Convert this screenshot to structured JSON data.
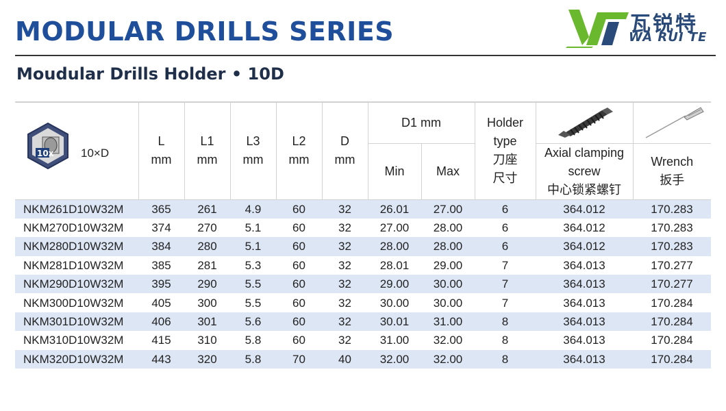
{
  "header": {
    "title": "MODULAR DRILLS SERIES",
    "subtitle": "Moudular Drills Holder • 10D",
    "logo": {
      "chinese": "瓦锐特",
      "english": "WA RUI TE",
      "brand_green": "#6ab82e",
      "brand_blue": "#2a4a7a"
    }
  },
  "table": {
    "icon": {
      "badge_text": "10x",
      "label": "10×D",
      "name": "hex-drill-icon"
    },
    "columns": {
      "L": {
        "line1": "L",
        "line2": "mm"
      },
      "L1": {
        "line1": "L1",
        "line2": "mm"
      },
      "L3": {
        "line1": "L3",
        "line2": "mm"
      },
      "L2": {
        "line1": "L2",
        "line2": "mm"
      },
      "D": {
        "line1": "D",
        "line2": "mm"
      },
      "D1": {
        "label": "D1 mm",
        "min": "Min",
        "max": "Max"
      },
      "holder": {
        "line1": "Holder",
        "line2": "type",
        "line3": "刀座",
        "line4": "尺寸"
      },
      "screw": {
        "line1": "Axial clamping",
        "line2": "screw",
        "line3": "中心锁紧螺钉"
      },
      "wrench": {
        "line1": "Wrench",
        "line2": "扳手"
      }
    },
    "rows": [
      {
        "model": "NKM261D10W32M",
        "L": "365",
        "L1": "261",
        "L3": "4.9",
        "L2": "60",
        "D": "32",
        "min": "26.01",
        "max": "27.00",
        "holder": "6",
        "screw": "364.012",
        "wrench": "170.283"
      },
      {
        "model": "NKM270D10W32M",
        "L": "374",
        "L1": "270",
        "L3": "5.1",
        "L2": "60",
        "D": "32",
        "min": "27.00",
        "max": "28.00",
        "holder": "6",
        "screw": "364.012",
        "wrench": "170.283"
      },
      {
        "model": "NKM280D10W32M",
        "L": "384",
        "L1": "280",
        "L3": "5.1",
        "L2": "60",
        "D": "32",
        "min": "28.00",
        "max": "28.00",
        "holder": "6",
        "screw": "364.012",
        "wrench": "170.283"
      },
      {
        "model": "NKM281D10W32M",
        "L": "385",
        "L1": "281",
        "L3": "5.3",
        "L2": "60",
        "D": "32",
        "min": "28.01",
        "max": "29.00",
        "holder": "7",
        "screw": "364.013",
        "wrench": "170.277"
      },
      {
        "model": "NKM290D10W32M",
        "L": "395",
        "L1": "290",
        "L3": "5.5",
        "L2": "60",
        "D": "32",
        "min": "29.00",
        "max": "30.00",
        "holder": "7",
        "screw": "364.013",
        "wrench": "170.277"
      },
      {
        "model": "NKM300D10W32M",
        "L": "405",
        "L1": "300",
        "L3": "5.5",
        "L2": "60",
        "D": "32",
        "min": "30.00",
        "max": "30.00",
        "holder": "7",
        "screw": "364.013",
        "wrench": "170.284"
      },
      {
        "model": "NKM301D10W32M",
        "L": "406",
        "L1": "301",
        "L3": "5.6",
        "L2": "60",
        "D": "32",
        "min": "30.01",
        "max": "31.00",
        "holder": "8",
        "screw": "364.013",
        "wrench": "170.284"
      },
      {
        "model": "NKM310D10W32M",
        "L": "415",
        "L1": "310",
        "L3": "5.8",
        "L2": "60",
        "D": "32",
        "min": "31.00",
        "max": "32.00",
        "holder": "8",
        "screw": "364.013",
        "wrench": "170.284"
      },
      {
        "model": "NKM320D10W32M",
        "L": "443",
        "L1": "320",
        "L3": "5.8",
        "L2": "70",
        "D": "40",
        "min": "32.00",
        "max": "32.00",
        "holder": "8",
        "screw": "364.013",
        "wrench": "170.284"
      }
    ],
    "colors": {
      "stripe": "#dde6f4",
      "title_blue": "#1f4e9b",
      "grid": "#d2d2d2"
    },
    "images": {
      "screw": "threaded-screw-image",
      "wrench": "torx-wrench-image"
    }
  }
}
